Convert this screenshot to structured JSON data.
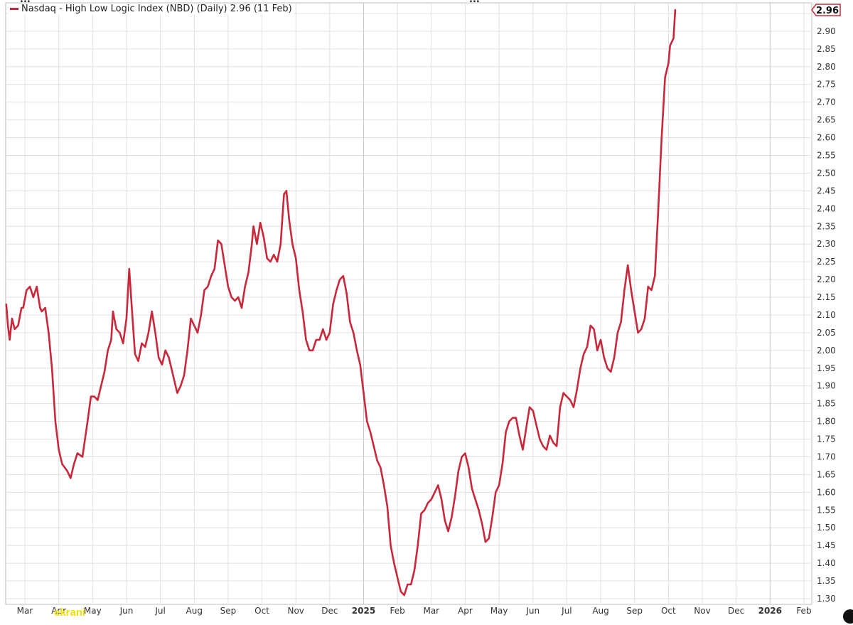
{
  "header": {
    "fragment_left": "...",
    "fragment_right": "..."
  },
  "watermark": "ekrani",
  "colors": {
    "series": "#c8283a",
    "grid": "#e0e0e0",
    "axis_text": "#333333",
    "background": "#ffffff"
  },
  "chart_data": {
    "type": "line",
    "title": "Nasdaq - High Low Logic Index (NBD) (Daily) 2.96 (11 Feb)",
    "last_value_label": "2.96",
    "xlabel": "",
    "ylabel": "",
    "ylim": [
      1.3,
      2.96
    ],
    "yticks": [
      1.3,
      1.35,
      1.4,
      1.45,
      1.5,
      1.55,
      1.6,
      1.65,
      1.7,
      1.75,
      1.8,
      1.85,
      1.9,
      1.95,
      2.0,
      2.05,
      2.1,
      2.15,
      2.2,
      2.25,
      2.3,
      2.35,
      2.4,
      2.45,
      2.5,
      2.55,
      2.6,
      2.65,
      2.7,
      2.75,
      2.8,
      2.85,
      2.9,
      2.95
    ],
    "ytick_labels": [
      "1.30",
      "1.35",
      "1.40",
      "1.45",
      "1.50",
      "1.55",
      "1.60",
      "1.65",
      "1.70",
      "1.75",
      "1.80",
      "1.85",
      "1.90",
      "1.95",
      "2.00",
      "2.05",
      "2.10",
      "2.15",
      "2.20",
      "2.25",
      "2.30",
      "2.35",
      "2.40",
      "2.45",
      "2.50",
      "2.55",
      "2.60",
      "2.65",
      "2.70",
      "2.75",
      "2.80",
      "2.85",
      "2.90",
      ""
    ],
    "xticks": [
      {
        "label": "Mar",
        "t": 0.0,
        "bold": false
      },
      {
        "label": "Apr",
        "t": 1.0,
        "bold": false
      },
      {
        "label": "May",
        "t": 2.0,
        "bold": false
      },
      {
        "label": "Jun",
        "t": 3.0,
        "bold": false
      },
      {
        "label": "Jul",
        "t": 4.0,
        "bold": false
      },
      {
        "label": "Aug",
        "t": 5.0,
        "bold": false
      },
      {
        "label": "Sep",
        "t": 6.0,
        "bold": false
      },
      {
        "label": "Oct",
        "t": 7.0,
        "bold": false
      },
      {
        "label": "Nov",
        "t": 8.0,
        "bold": false
      },
      {
        "label": "Dec",
        "t": 9.0,
        "bold": false
      },
      {
        "label": "2025",
        "t": 10.0,
        "bold": true
      },
      {
        "label": "Feb",
        "t": 11.0,
        "bold": false
      },
      {
        "label": "Mar",
        "t": 12.0,
        "bold": false
      },
      {
        "label": "Apr",
        "t": 13.0,
        "bold": false
      },
      {
        "label": "May",
        "t": 14.0,
        "bold": false
      },
      {
        "label": "Jun",
        "t": 15.0,
        "bold": false
      },
      {
        "label": "Jul",
        "t": 16.0,
        "bold": false
      },
      {
        "label": "Aug",
        "t": 17.0,
        "bold": false
      },
      {
        "label": "Sep",
        "t": 18.0,
        "bold": false
      },
      {
        "label": "Oct",
        "t": 19.0,
        "bold": false
      },
      {
        "label": "Nov",
        "t": 20.0,
        "bold": false
      },
      {
        "label": "Dec",
        "t": 21.0,
        "bold": false
      },
      {
        "label": "2026",
        "t": 22.0,
        "bold": true
      },
      {
        "label": "Feb",
        "t": 23.0,
        "bold": false
      }
    ],
    "series": [
      {
        "name": "Nasdaq - High Low Logic Index (NBD) (Daily)",
        "points": [
          [
            -0.55,
            2.13
          ],
          [
            -0.5,
            2.07
          ],
          [
            -0.45,
            2.03
          ],
          [
            -0.38,
            2.09
          ],
          [
            -0.3,
            2.06
          ],
          [
            -0.2,
            2.07
          ],
          [
            -0.1,
            2.12
          ],
          [
            -0.05,
            2.12
          ],
          [
            0.05,
            2.17
          ],
          [
            0.15,
            2.18
          ],
          [
            0.25,
            2.15
          ],
          [
            0.35,
            2.18
          ],
          [
            0.45,
            2.12
          ],
          [
            0.5,
            2.11
          ],
          [
            0.6,
            2.12
          ],
          [
            0.7,
            2.05
          ],
          [
            0.8,
            1.95
          ],
          [
            0.9,
            1.8
          ],
          [
            1.0,
            1.72
          ],
          [
            1.1,
            1.68
          ],
          [
            1.25,
            1.66
          ],
          [
            1.35,
            1.64
          ],
          [
            1.45,
            1.68
          ],
          [
            1.55,
            1.71
          ],
          [
            1.7,
            1.7
          ],
          [
            1.85,
            1.8
          ],
          [
            1.95,
            1.87
          ],
          [
            2.05,
            1.87
          ],
          [
            2.15,
            1.86
          ],
          [
            2.25,
            1.9
          ],
          [
            2.35,
            1.94
          ],
          [
            2.45,
            2.0
          ],
          [
            2.55,
            2.03
          ],
          [
            2.6,
            2.11
          ],
          [
            2.7,
            2.06
          ],
          [
            2.8,
            2.05
          ],
          [
            2.9,
            2.02
          ],
          [
            3.0,
            2.09
          ],
          [
            3.08,
            2.23
          ],
          [
            3.15,
            2.13
          ],
          [
            3.25,
            1.99
          ],
          [
            3.35,
            1.97
          ],
          [
            3.45,
            2.02
          ],
          [
            3.55,
            2.01
          ],
          [
            3.65,
            2.05
          ],
          [
            3.75,
            2.11
          ],
          [
            3.85,
            2.05
          ],
          [
            3.95,
            1.98
          ],
          [
            4.05,
            1.96
          ],
          [
            4.15,
            2.0
          ],
          [
            4.25,
            1.98
          ],
          [
            4.35,
            1.94
          ],
          [
            4.45,
            1.9
          ],
          [
            4.5,
            1.88
          ],
          [
            4.6,
            1.9
          ],
          [
            4.7,
            1.93
          ],
          [
            4.8,
            2.0
          ],
          [
            4.9,
            2.09
          ],
          [
            5.0,
            2.07
          ],
          [
            5.1,
            2.05
          ],
          [
            5.2,
            2.1
          ],
          [
            5.3,
            2.17
          ],
          [
            5.4,
            2.18
          ],
          [
            5.5,
            2.21
          ],
          [
            5.6,
            2.23
          ],
          [
            5.7,
            2.31
          ],
          [
            5.8,
            2.3
          ],
          [
            5.9,
            2.24
          ],
          [
            6.0,
            2.18
          ],
          [
            6.1,
            2.15
          ],
          [
            6.2,
            2.14
          ],
          [
            6.3,
            2.15
          ],
          [
            6.4,
            2.12
          ],
          [
            6.5,
            2.18
          ],
          [
            6.6,
            2.22
          ],
          [
            6.7,
            2.3
          ],
          [
            6.75,
            2.35
          ],
          [
            6.85,
            2.3
          ],
          [
            6.95,
            2.36
          ],
          [
            7.05,
            2.32
          ],
          [
            7.15,
            2.26
          ],
          [
            7.25,
            2.25
          ],
          [
            7.35,
            2.27
          ],
          [
            7.45,
            2.25
          ],
          [
            7.55,
            2.3
          ],
          [
            7.65,
            2.44
          ],
          [
            7.72,
            2.45
          ],
          [
            7.8,
            2.37
          ],
          [
            7.9,
            2.3
          ],
          [
            8.0,
            2.26
          ],
          [
            8.1,
            2.17
          ],
          [
            8.2,
            2.11
          ],
          [
            8.3,
            2.03
          ],
          [
            8.4,
            2.0
          ],
          [
            8.5,
            2.0
          ],
          [
            8.6,
            2.03
          ],
          [
            8.7,
            2.03
          ],
          [
            8.8,
            2.06
          ],
          [
            8.9,
            2.03
          ],
          [
            9.0,
            2.05
          ],
          [
            9.1,
            2.13
          ],
          [
            9.2,
            2.17
          ],
          [
            9.3,
            2.2
          ],
          [
            9.4,
            2.21
          ],
          [
            9.5,
            2.16
          ],
          [
            9.6,
            2.08
          ],
          [
            9.7,
            2.05
          ],
          [
            9.8,
            2.0
          ],
          [
            9.9,
            1.96
          ],
          [
            10.0,
            1.88
          ],
          [
            10.1,
            1.8
          ],
          [
            10.2,
            1.77
          ],
          [
            10.3,
            1.73
          ],
          [
            10.4,
            1.69
          ],
          [
            10.5,
            1.67
          ],
          [
            10.6,
            1.62
          ],
          [
            10.7,
            1.56
          ],
          [
            10.8,
            1.45
          ],
          [
            10.9,
            1.4
          ],
          [
            11.0,
            1.36
          ],
          [
            11.1,
            1.32
          ],
          [
            11.2,
            1.31
          ],
          [
            11.3,
            1.34
          ],
          [
            11.4,
            1.34
          ],
          [
            11.5,
            1.38
          ],
          [
            11.6,
            1.45
          ],
          [
            11.7,
            1.54
          ],
          [
            11.8,
            1.55
          ],
          [
            11.9,
            1.57
          ],
          [
            12.0,
            1.58
          ],
          [
            12.1,
            1.6
          ],
          [
            12.2,
            1.62
          ],
          [
            12.3,
            1.58
          ],
          [
            12.4,
            1.52
          ],
          [
            12.5,
            1.49
          ],
          [
            12.6,
            1.53
          ],
          [
            12.7,
            1.59
          ],
          [
            12.8,
            1.66
          ],
          [
            12.9,
            1.7
          ],
          [
            13.0,
            1.71
          ],
          [
            13.1,
            1.67
          ],
          [
            13.2,
            1.61
          ],
          [
            13.3,
            1.58
          ],
          [
            13.4,
            1.55
          ],
          [
            13.5,
            1.51
          ],
          [
            13.6,
            1.46
          ],
          [
            13.7,
            1.47
          ],
          [
            13.8,
            1.53
          ],
          [
            13.9,
            1.6
          ],
          [
            14.0,
            1.62
          ],
          [
            14.1,
            1.68
          ],
          [
            14.2,
            1.77
          ],
          [
            14.3,
            1.8
          ],
          [
            14.4,
            1.81
          ],
          [
            14.5,
            1.81
          ],
          [
            14.6,
            1.76
          ],
          [
            14.7,
            1.72
          ],
          [
            14.8,
            1.78
          ],
          [
            14.9,
            1.84
          ],
          [
            15.0,
            1.83
          ],
          [
            15.1,
            1.79
          ],
          [
            15.2,
            1.75
          ],
          [
            15.3,
            1.73
          ],
          [
            15.4,
            1.72
          ],
          [
            15.5,
            1.76
          ],
          [
            15.6,
            1.74
          ],
          [
            15.7,
            1.73
          ],
          [
            15.8,
            1.84
          ],
          [
            15.9,
            1.88
          ],
          [
            16.0,
            1.87
          ],
          [
            16.1,
            1.86
          ],
          [
            16.2,
            1.84
          ],
          [
            16.3,
            1.89
          ],
          [
            16.4,
            1.95
          ],
          [
            16.5,
            1.99
          ],
          [
            16.6,
            2.01
          ],
          [
            16.7,
            2.07
          ],
          [
            16.8,
            2.06
          ],
          [
            16.9,
            2.0
          ],
          [
            17.0,
            2.03
          ],
          [
            17.1,
            1.98
          ],
          [
            17.2,
            1.95
          ],
          [
            17.3,
            1.94
          ],
          [
            17.4,
            1.98
          ],
          [
            17.5,
            2.05
          ],
          [
            17.6,
            2.08
          ],
          [
            17.7,
            2.17
          ],
          [
            17.8,
            2.24
          ],
          [
            17.9,
            2.17
          ],
          [
            18.0,
            2.11
          ],
          [
            18.1,
            2.05
          ],
          [
            18.2,
            2.06
          ],
          [
            18.3,
            2.09
          ],
          [
            18.4,
            2.18
          ],
          [
            18.5,
            2.17
          ],
          [
            18.6,
            2.21
          ],
          [
            18.7,
            2.4
          ],
          [
            18.8,
            2.6
          ],
          [
            18.9,
            2.77
          ],
          [
            19.0,
            2.81
          ],
          [
            19.05,
            2.86
          ],
          [
            19.1,
            2.87
          ],
          [
            19.15,
            2.88
          ],
          [
            19.2,
            2.96
          ]
        ]
      }
    ]
  }
}
